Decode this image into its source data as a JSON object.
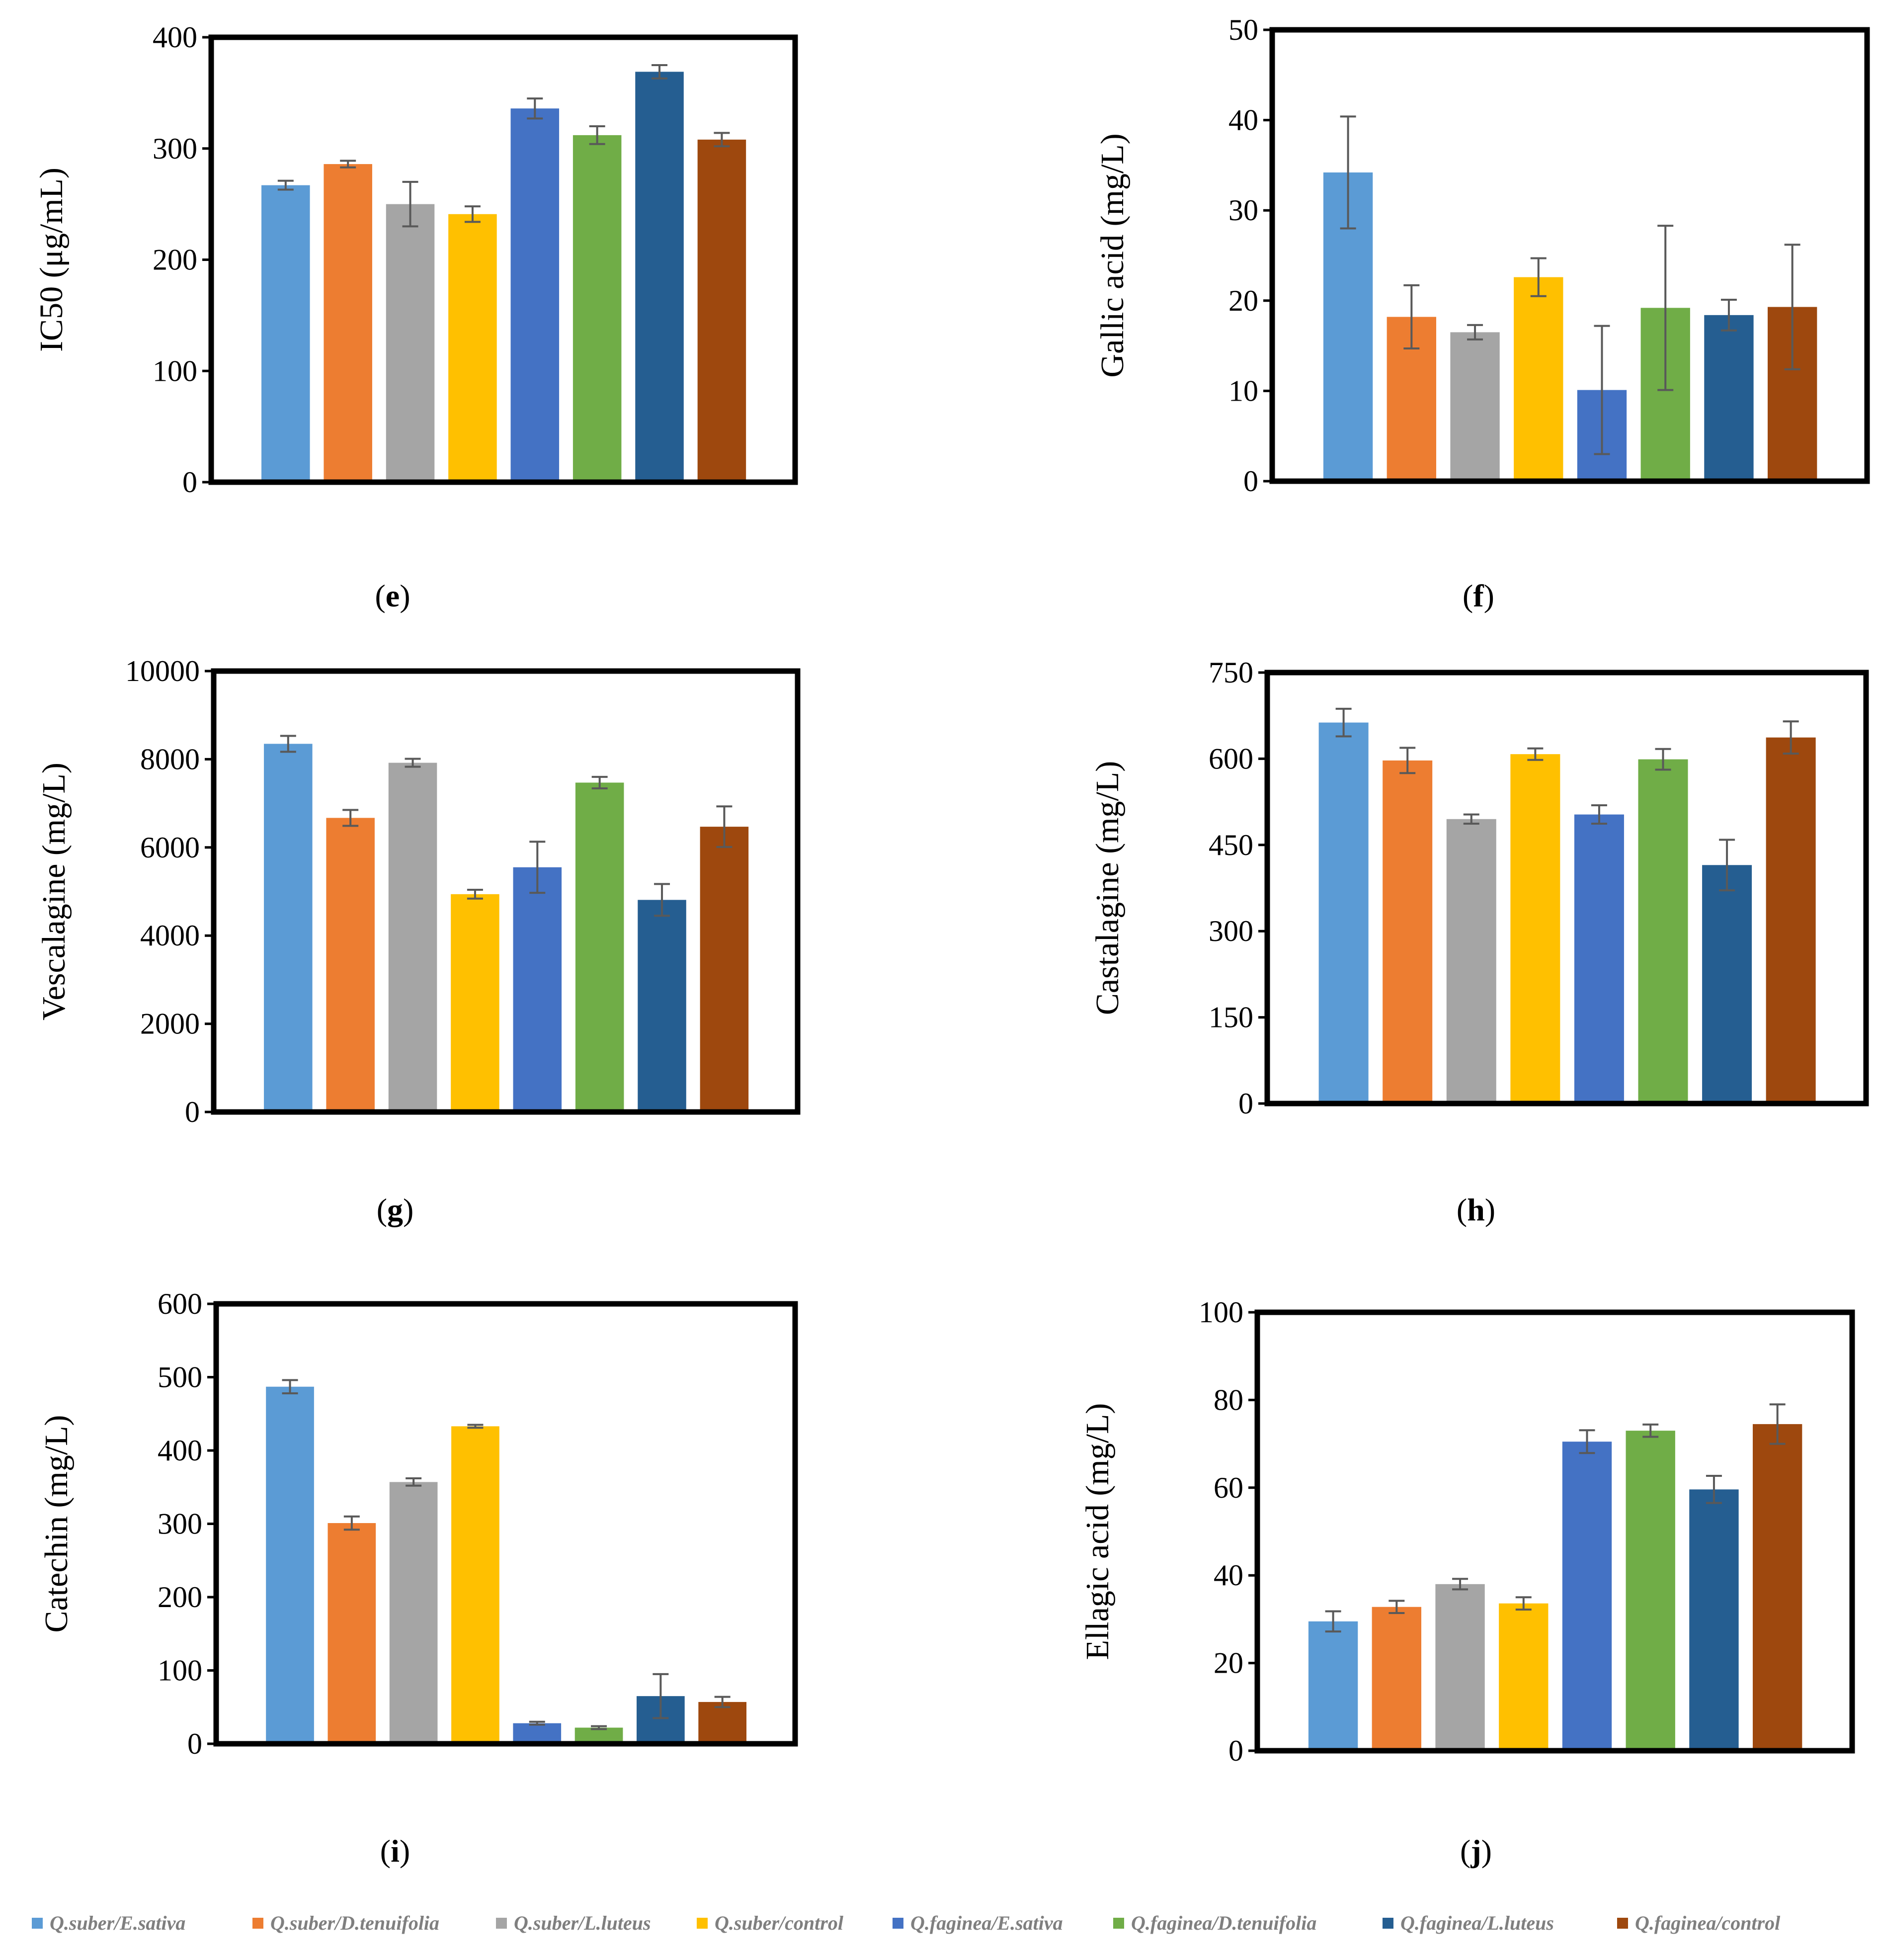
{
  "legend": [
    {
      "label": "Q.suber/E.sativa",
      "color": "#5b9bd5"
    },
    {
      "label": "Q.suber/D.tenuifolia",
      "color": "#ed7d31"
    },
    {
      "label": "Q.suber/L.luteus",
      "color": "#a5a5a5"
    },
    {
      "label": "Q.suber/control",
      "color": "#ffc000"
    },
    {
      "label": "Q.faginea/E.sativa",
      "color": "#4472c4"
    },
    {
      "label": "Q.faginea/D.tenuifolia",
      "color": "#70ad47"
    },
    {
      "label": "Q.faginea/L.luteus",
      "color": "#255e91"
    },
    {
      "label": "Q.faginea/control",
      "color": "#9e480e"
    }
  ],
  "chart_data": [
    {
      "type": "bar",
      "panel_id": "e",
      "panel_label": "e",
      "ylabel": "IC50 (μg/mL)",
      "ylim": [
        0,
        400
      ],
      "yticks": [
        "0",
        "100",
        "200",
        "300",
        "400"
      ],
      "values": [
        267,
        286,
        250,
        241,
        336,
        312,
        369,
        308
      ],
      "errors": [
        4,
        3,
        20,
        7,
        9,
        8,
        6,
        6
      ]
    },
    {
      "type": "bar",
      "panel_id": "f",
      "panel_label": "f",
      "ylabel": "Gallic acid (mg/L)",
      "ylim": [
        0,
        50
      ],
      "yticks": [
        "0",
        "10",
        "20",
        "30",
        "40",
        "50"
      ],
      "values": [
        34.2,
        18.2,
        16.5,
        22.6,
        10.1,
        19.2,
        18.4,
        19.3
      ],
      "errors": [
        6.2,
        3.5,
        0.8,
        2.1,
        7.1,
        9.1,
        1.7,
        6.9
      ]
    },
    {
      "type": "bar",
      "panel_id": "g",
      "panel_label": "g",
      "ylabel": "Vescalagine (mg/L)",
      "ylim": [
        0,
        10000
      ],
      "yticks": [
        "0",
        "2000",
        "4000",
        "6000",
        "8000",
        "10000"
      ],
      "values": [
        8350,
        6670,
        7920,
        4940,
        5550,
        7470,
        4810,
        6470
      ],
      "errors": [
        180,
        180,
        90,
        100,
        580,
        130,
        360,
        460
      ]
    },
    {
      "type": "bar",
      "panel_id": "h",
      "panel_label": "h",
      "ylabel": "Castalagine (mg/L)",
      "ylim": [
        0,
        750
      ],
      "yticks": [
        "0",
        "150",
        "300",
        "450",
        "600",
        "750"
      ],
      "values": [
        663,
        597,
        495,
        608,
        503,
        599,
        415,
        637
      ],
      "errors": [
        24,
        22,
        8,
        10,
        16,
        18,
        44,
        28
      ]
    },
    {
      "type": "bar",
      "panel_id": "i",
      "panel_label": "i",
      "ylabel": "Catechin (mg/L)",
      "ylim": [
        0,
        600
      ],
      "yticks": [
        "0",
        "100",
        "200",
        "300",
        "400",
        "500",
        "600"
      ],
      "values": [
        487,
        301,
        357,
        433,
        28,
        22,
        65,
        57
      ],
      "errors": [
        9,
        9,
        5,
        2,
        2,
        2,
        30,
        7
      ]
    },
    {
      "type": "bar",
      "panel_id": "j",
      "panel_label": "j",
      "ylabel": "Ellagic acid (mg/L)",
      "ylim": [
        0,
        100
      ],
      "yticks": [
        "0",
        "20",
        "40",
        "60",
        "80",
        "100"
      ],
      "values": [
        29.5,
        32.8,
        38.0,
        33.6,
        70.5,
        73.0,
        59.6,
        74.5
      ],
      "errors": [
        2.3,
        1.4,
        1.2,
        1.4,
        2.6,
        1.4,
        3.1,
        4.5
      ]
    }
  ]
}
